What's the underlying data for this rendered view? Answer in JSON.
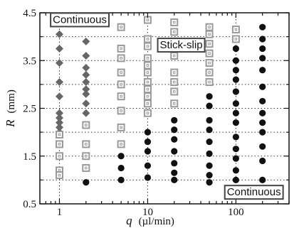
{
  "chart_data": {
    "type": "scatter",
    "xlabel": "q",
    "xlabel_unit": "(µl/min)",
    "ylabel": "R",
    "ylabel_unit": "(mm)",
    "xscale": "log",
    "xlim": [
      0.6,
      400
    ],
    "ylim": [
      0.5,
      4.5
    ],
    "xticks": [
      1,
      10,
      100
    ],
    "xtick_labels": [
      "1",
      "10",
      "100"
    ],
    "yticks": [
      0.5,
      1.5,
      2.5,
      3.5,
      4.5
    ],
    "ytick_labels": [
      "0.5",
      "1.5",
      "2.5",
      "3.5",
      "4.5"
    ],
    "grid": true,
    "grid_style": "dotted",
    "annotations": [
      {
        "text": "Continuous",
        "x": 1.7,
        "y": 4.36,
        "anchor": "middle"
      },
      {
        "text": "Stick-slip",
        "x": 24,
        "y": 3.83,
        "anchor": "middle"
      },
      {
        "text": "Continuous",
        "x": 160,
        "y": 0.75,
        "anchor": "middle"
      }
    ],
    "series": [
      {
        "marker": "diamond",
        "color": "#666666",
        "points": [
          [
            1,
            4.05
          ],
          [
            1,
            3.75
          ],
          [
            1,
            3.45
          ],
          [
            1,
            3.05
          ],
          [
            1,
            2.75
          ],
          [
            1,
            2.4
          ],
          [
            1,
            2.3
          ],
          [
            1,
            2.2
          ],
          [
            1,
            2.1
          ],
          [
            1,
            2.0
          ],
          [
            2,
            3.9
          ],
          [
            2,
            3.6
          ],
          [
            2,
            3.35
          ],
          [
            2,
            3.2
          ],
          [
            2,
            3.05
          ],
          [
            2,
            2.9
          ],
          [
            2,
            2.8
          ],
          [
            2,
            2.6
          ],
          [
            2,
            2.4
          ]
        ]
      },
      {
        "marker": "square-open",
        "color": "#9a9a9a",
        "points": [
          [
            1,
            1.95
          ],
          [
            1,
            1.75
          ],
          [
            1,
            1.5
          ],
          [
            1,
            1.2
          ],
          [
            1,
            1.1
          ],
          [
            2,
            2.15
          ],
          [
            2,
            1.75
          ],
          [
            2,
            1.5
          ],
          [
            2,
            1.25
          ],
          [
            5,
            4.2
          ],
          [
            5,
            3.75
          ],
          [
            5,
            3.55
          ],
          [
            5,
            3.25
          ],
          [
            5,
            3.0
          ],
          [
            5,
            2.75
          ],
          [
            5,
            2.45
          ],
          [
            5,
            2.1
          ],
          [
            5,
            1.75
          ],
          [
            10,
            4.35
          ],
          [
            10,
            3.95
          ],
          [
            10,
            3.8
          ],
          [
            10,
            3.55
          ],
          [
            10,
            3.4
          ],
          [
            10,
            3.25
          ],
          [
            10,
            3.05
          ],
          [
            10,
            2.9
          ],
          [
            10,
            2.75
          ],
          [
            10,
            2.6
          ],
          [
            10,
            2.4
          ],
          [
            20,
            4.3
          ],
          [
            20,
            4.1
          ],
          [
            20,
            3.9
          ],
          [
            20,
            3.6
          ],
          [
            20,
            3.25
          ],
          [
            20,
            3.05
          ],
          [
            20,
            2.85
          ],
          [
            20,
            2.6
          ],
          [
            50,
            4.2
          ],
          [
            50,
            4.05
          ],
          [
            50,
            3.85
          ],
          [
            50,
            3.65
          ],
          [
            50,
            3.45
          ],
          [
            50,
            3.25
          ],
          [
            50,
            3.05
          ],
          [
            100,
            4.15
          ],
          [
            100,
            3.95
          ]
        ]
      },
      {
        "marker": "circle",
        "color": "#111111",
        "points": [
          [
            2,
            0.95
          ],
          [
            5,
            1.5
          ],
          [
            5,
            1.25
          ],
          [
            5,
            1.0
          ],
          [
            10,
            2.0
          ],
          [
            10,
            1.8
          ],
          [
            10,
            1.6
          ],
          [
            10,
            1.3
          ],
          [
            10,
            1.05
          ],
          [
            20,
            2.25
          ],
          [
            20,
            2.05
          ],
          [
            20,
            1.85
          ],
          [
            20,
            1.6
          ],
          [
            20,
            1.35
          ],
          [
            20,
            1.15
          ],
          [
            20,
            1.0
          ],
          [
            50,
            2.75
          ],
          [
            50,
            2.55
          ],
          [
            50,
            2.25
          ],
          [
            50,
            2.05
          ],
          [
            50,
            1.8
          ],
          [
            50,
            1.55
          ],
          [
            50,
            1.3
          ],
          [
            50,
            1.1
          ],
          [
            50,
            0.95
          ],
          [
            100,
            3.75
          ],
          [
            100,
            3.5
          ],
          [
            100,
            3.3
          ],
          [
            100,
            3.1
          ],
          [
            100,
            2.85
          ],
          [
            100,
            2.6
          ],
          [
            100,
            2.4
          ],
          [
            100,
            2.2
          ],
          [
            100,
            1.9
          ],
          [
            100,
            1.65
          ],
          [
            100,
            1.45
          ],
          [
            100,
            1.2
          ],
          [
            100,
            1.0
          ],
          [
            200,
            4.2
          ],
          [
            200,
            3.95
          ],
          [
            200,
            3.75
          ],
          [
            200,
            3.55
          ],
          [
            200,
            3.3
          ],
          [
            200,
            2.95
          ],
          [
            200,
            2.65
          ],
          [
            200,
            2.4
          ],
          [
            200,
            2.2
          ],
          [
            200,
            2.0
          ],
          [
            200,
            1.7
          ],
          [
            200,
            1.4
          ],
          [
            200,
            1.0
          ]
        ]
      }
    ]
  }
}
